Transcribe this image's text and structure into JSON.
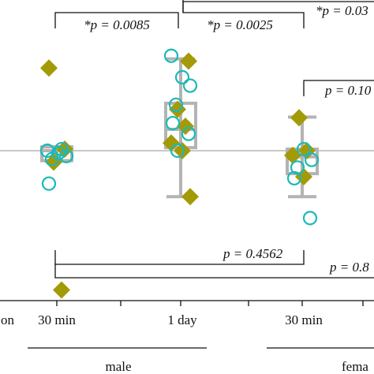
{
  "chart_data": {
    "type": "scatter",
    "title": "",
    "xlabel": "",
    "ylabel": "",
    "x_tick_labels": [
      "on",
      "30 min",
      "1 day",
      "30 min"
    ],
    "groups": [
      {
        "label": "male",
        "conditions": [
          "30 min",
          "1 day"
        ]
      },
      {
        "label": "fema",
        "conditions": [
          "30 min"
        ]
      }
    ],
    "y_reference": 0,
    "ylim": [
      -2.2,
      2.0
    ],
    "grid": false,
    "colors": {
      "diamond": "#a39a07",
      "circle": "#1cb8b8",
      "box": "#b3b3b3",
      "reference": "#a6a6a6",
      "bracket": "#111111"
    },
    "series": [
      {
        "marker": "diamond",
        "points": [
          {
            "x": "30 min",
            "values": [
              1.08,
              0.02,
              -0.15,
              -1.82
            ]
          },
          {
            "x": "1 day",
            "values": [
              1.17,
              0.54,
              0.32,
              0.1,
              0.0,
              -0.6
            ]
          },
          {
            "x": "30 min (female)",
            "values": [
              0.43,
              0.0,
              -0.06,
              -0.34
            ]
          }
        ]
      },
      {
        "marker": "circle",
        "points": [
          {
            "x": "30 min",
            "values": [
              0.02,
              0.0,
              -0.03,
              -0.07,
              -0.11,
              -0.43
            ]
          },
          {
            "x": "1 day",
            "values": [
              1.24,
              0.96,
              0.85,
              0.6,
              0.36,
              0.22,
              0.0
            ]
          },
          {
            "x": "30 min (female)",
            "values": [
              0.02,
              -0.12,
              -0.22,
              -0.36,
              -0.88
            ]
          }
        ]
      }
    ],
    "boxes": [
      {
        "x": "30 min",
        "q1": -0.13,
        "median": 0.0,
        "q3": 0.05,
        "whisker_low": -0.13,
        "whisker_high": 0.05
      },
      {
        "x": "1 day",
        "q1": 0.04,
        "median": 0.28,
        "q3": 0.62,
        "whisker_low": -0.6,
        "whisker_high": 1.2
      },
      {
        "x": "30 min (female)",
        "q1": -0.3,
        "median": -0.08,
        "q3": 0.02,
        "whisker_low": -0.6,
        "whisker_high": 0.44
      }
    ],
    "comparisons": [
      {
        "label": "*p = 0.0085",
        "from": "30 min",
        "to": "1 day"
      },
      {
        "label": "*p = 0.0025",
        "from": "1 day",
        "to": "30 min (female)"
      },
      {
        "label": "*p = 0.03",
        "from": "1 day",
        "to": "off-chart"
      },
      {
        "label": "p = 0.10",
        "from": "30 min (female)",
        "to": "off-chart"
      },
      {
        "label": "p = 0.4562",
        "from": "30 min",
        "to": "30 min (female)"
      },
      {
        "label": "p = 0.8",
        "from": "30 min",
        "to": "off-chart"
      }
    ]
  }
}
